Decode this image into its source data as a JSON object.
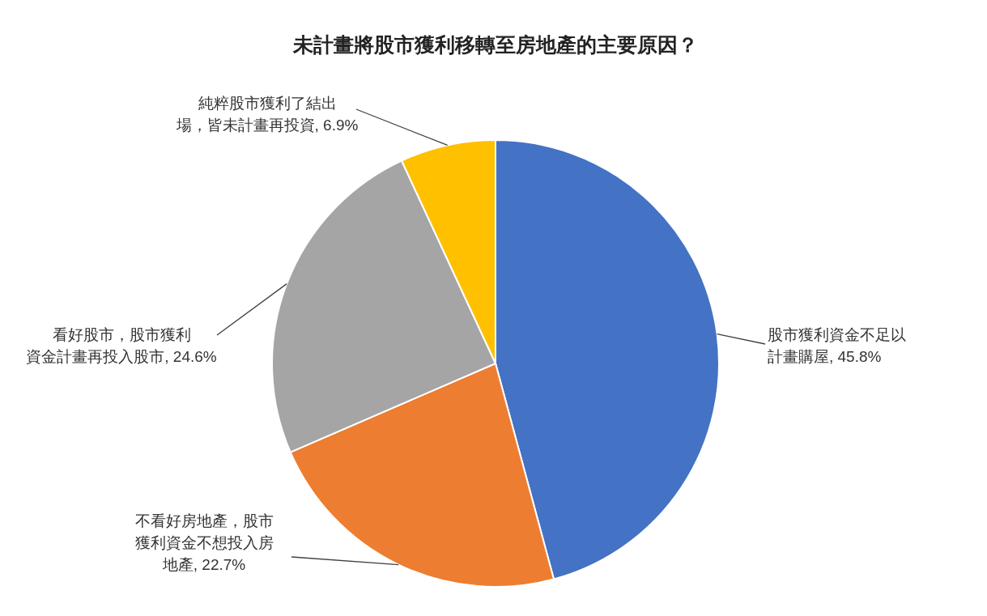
{
  "chart_data": {
    "type": "pie",
    "title": "未計畫將股市獲利移轉至房地產的主要原因？",
    "categories": [
      "股市獲利資金不足以計畫購屋",
      "不看好房地產，股市獲利資金不想投入房地產",
      "看好股市，股市獲利資金計畫再投入股市",
      "純粹股市獲利了結出場，皆未計畫再投資"
    ],
    "values": [
      45.8,
      22.7,
      24.6,
      6.9
    ],
    "value_labels": [
      "45.8%",
      "22.7%",
      "24.6%",
      "6.9%"
    ],
    "colors": [
      "#4472c4",
      "#ed7d31",
      "#a5a5a5",
      "#ffc000"
    ]
  }
}
